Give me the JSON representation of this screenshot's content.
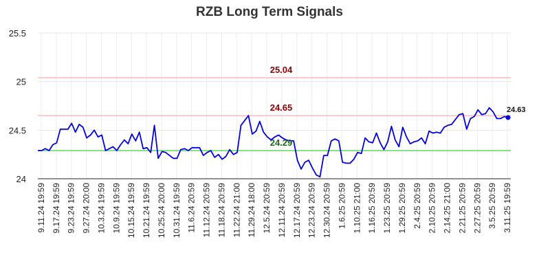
{
  "chart_data": {
    "type": "line",
    "title": "RZB Long Term Signals",
    "xlabel": "",
    "ylabel": "",
    "ylim": [
      24,
      25.5
    ],
    "y_ticks": [
      "24",
      "24.5",
      "25",
      "25.5"
    ],
    "x_ticks": [
      "9.11.24 19:59",
      "9.17.24 19:59",
      "9.23.24 19:59",
      "9.27.24 20:00",
      "10.3.24 19:59",
      "10.9.24 19:59",
      "10.15.24 19:59",
      "10.21.24 19:59",
      "10.25.24 20:00",
      "10.31.24 19:59",
      "11.6.24 20:59",
      "11.12.24 20:59",
      "11.18.24 20:59",
      "11.22.24 21:00",
      "11.29.24 18:00",
      "12.5.24 20:59",
      "12.11.24 20:59",
      "12.17.24 20:59",
      "12.23.24 20:59",
      "12.30.24 20:59",
      "1.6.25 20:59",
      "1.10.25 21:00",
      "1.16.25 20:59",
      "1.23.25 20:59",
      "1.29.25 20:59",
      "2.4.25 20:59",
      "2.10.25 20:59",
      "2.14.25 21:00",
      "2.21.25 20:59",
      "2.27.25 20:59",
      "3.5.25 20:59",
      "3.11.25 19:59"
    ],
    "grid": true,
    "series": [
      {
        "color": "#0000dd",
        "values": [
          24.29,
          24.29,
          24.31,
          24.29,
          24.35,
          24.37,
          24.51,
          24.51,
          24.51,
          24.57,
          24.48,
          24.56,
          24.53,
          24.42,
          24.45,
          24.5,
          24.43,
          24.45,
          24.29,
          24.31,
          24.33,
          24.29,
          24.35,
          24.4,
          24.36,
          24.46,
          24.39,
          24.48,
          24.31,
          24.32,
          24.27,
          24.55,
          24.21,
          24.28,
          24.27,
          24.24,
          24.21,
          24.21,
          24.3,
          24.31,
          24.29,
          24.32,
          24.32,
          24.32,
          24.24,
          24.27,
          24.29,
          24.22,
          24.25,
          24.2,
          24.23,
          24.3,
          24.25,
          24.27,
          24.55,
          24.6,
          24.65,
          24.46,
          24.49,
          24.59,
          24.48,
          24.43,
          24.4,
          24.43,
          24.45,
          24.42,
          24.4,
          24.39,
          24.39,
          24.19,
          24.1,
          24.17,
          24.19,
          24.11,
          24.04,
          24.02,
          24.24,
          24.24,
          24.39,
          24.41,
          24.39,
          24.17,
          24.16,
          24.16,
          24.2,
          24.27,
          24.26,
          24.42,
          24.38,
          24.37,
          24.47,
          24.37,
          24.3,
          24.38,
          24.54,
          24.4,
          24.33,
          24.53,
          24.43,
          24.36,
          24.38,
          24.39,
          24.42,
          24.36,
          24.49,
          24.47,
          24.48,
          24.47,
          24.53,
          24.55,
          24.56,
          24.61,
          24.66,
          24.67,
          24.51,
          24.62,
          24.64,
          24.71,
          24.66,
          24.67,
          24.73,
          24.69,
          24.62,
          24.62,
          24.64,
          24.63
        ]
      }
    ],
    "reference_lines": [
      {
        "value": 25.04,
        "label": "25.04",
        "line_color": "#ffbbbb",
        "label_color": "#8b0000"
      },
      {
        "value": 24.65,
        "label": "24.65",
        "line_color": "#ffbbbb",
        "label_color": "#8b0000"
      },
      {
        "value": 24.29,
        "label": "24.29",
        "line_color": "#66dd66",
        "label_color": "#1a6b1a"
      }
    ],
    "last_value_label": "24.63"
  }
}
